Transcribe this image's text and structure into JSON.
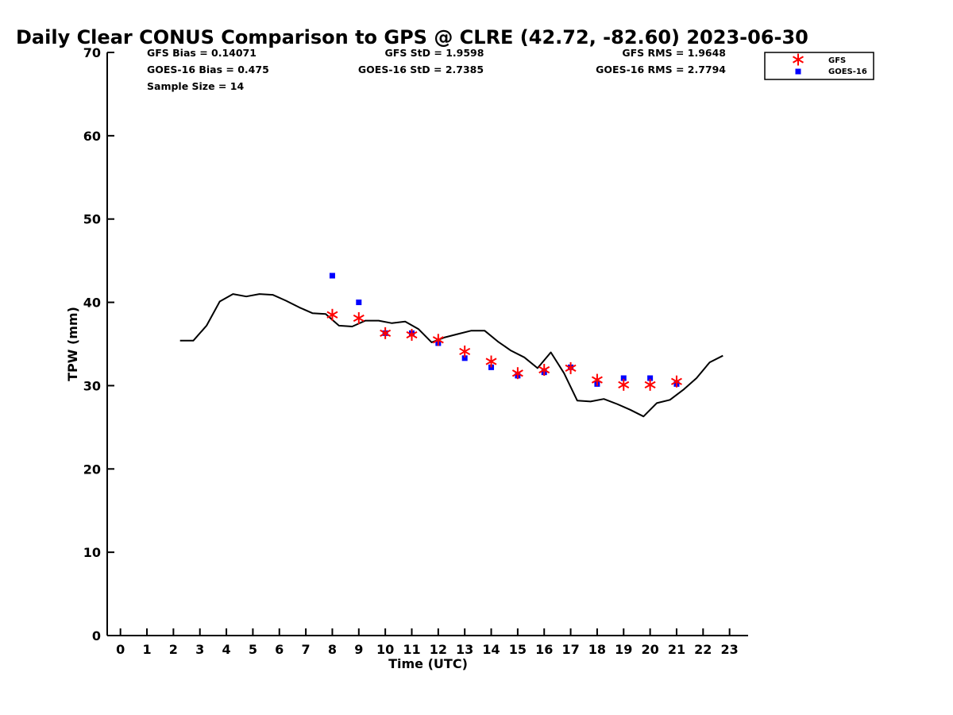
{
  "chart_data": {
    "type": "scatter",
    "title": "Daily Clear CONUS Comparison to GPS @ CLRE (42.72, -82.60) 2023-06-30",
    "xlabel": "Time (UTC)",
    "ylabel": "TPW (mm)",
    "xlim": [
      -0.5,
      23.7
    ],
    "ylim": [
      0,
      70
    ],
    "xticks": [
      0,
      1,
      2,
      3,
      4,
      5,
      6,
      7,
      8,
      9,
      10,
      11,
      12,
      13,
      14,
      15,
      16,
      17,
      18,
      19,
      20,
      21,
      22,
      23
    ],
    "yticks": [
      0,
      10,
      20,
      30,
      40,
      50,
      60,
      70
    ],
    "grid": false,
    "legend_position": "top-right",
    "stats": {
      "gfs_bias": "GFS Bias = 0.14071",
      "goes_bias": "GOES-16 Bias = 0.475",
      "sample_size": "Sample Size = 14",
      "gfs_std": "GFS StD = 1.9598",
      "goes_std": "GOES-16 StD = 2.7385",
      "gfs_rms": "GFS RMS = 1.9648",
      "goes_rms": "GOES-16 RMS = 2.7794"
    },
    "series": [
      {
        "name": "GPS",
        "style": "line",
        "color": "#000000",
        "x": [
          2.25,
          2.75,
          3.25,
          3.75,
          4.25,
          4.75,
          5.25,
          5.75,
          6.25,
          6.75,
          7.25,
          7.75,
          8.25,
          8.75,
          9.25,
          9.75,
          10.25,
          10.75,
          11.25,
          11.75,
          12.25,
          12.75,
          13.25,
          13.75,
          14.25,
          14.75,
          15.25,
          15.75,
          16.25,
          16.75,
          17.25,
          17.75,
          18.25,
          18.75,
          19.25,
          19.75,
          20.25,
          20.75,
          21.25,
          21.75,
          22.25,
          22.75
        ],
        "y": [
          35.4,
          35.4,
          37.2,
          40.1,
          41.0,
          40.7,
          41.0,
          40.9,
          40.2,
          39.4,
          38.7,
          38.6,
          37.2,
          37.1,
          37.8,
          37.8,
          37.5,
          37.7,
          36.8,
          35.2,
          35.8,
          36.2,
          36.6,
          36.6,
          35.3,
          34.2,
          33.4,
          32.1,
          34.0,
          31.5,
          28.2,
          28.1,
          28.4,
          27.8,
          27.1,
          26.3,
          27.9,
          28.3,
          29.5,
          30.9,
          32.8,
          33.6
        ]
      },
      {
        "name": "GFS",
        "style": "star",
        "color": "#ff0000",
        "x": [
          8,
          9,
          10,
          11,
          12,
          13,
          14,
          15,
          16,
          17,
          18,
          19,
          20,
          21
        ],
        "y": [
          38.5,
          38.1,
          36.3,
          36.1,
          35.5,
          34.1,
          32.9,
          31.5,
          31.9,
          32.1,
          30.7,
          30.1,
          30.1,
          30.5
        ]
      },
      {
        "name": "GOES-16",
        "style": "square",
        "color": "#0000ff",
        "x": [
          8,
          9,
          10,
          11,
          12,
          13,
          14,
          15,
          16,
          17,
          18,
          19,
          20,
          21
        ],
        "y": [
          43.2,
          40.0,
          36.3,
          36.3,
          35.1,
          33.3,
          32.2,
          31.2,
          31.6,
          32.2,
          30.2,
          30.9,
          30.9,
          30.2
        ]
      }
    ],
    "legend": [
      {
        "label": "GFS",
        "series": "GFS"
      },
      {
        "label": "GOES-16",
        "series": "GOES-16"
      }
    ]
  }
}
